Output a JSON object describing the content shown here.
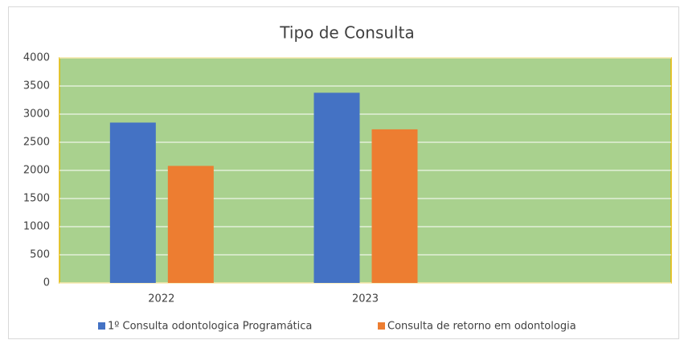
{
  "chart_data": {
    "type": "bar",
    "title": "Tipo de Consulta",
    "categories": [
      "2022",
      "2023",
      null
    ],
    "series": [
      {
        "name": "1º Consulta odontologica Programática",
        "color": "#4472c4",
        "values": [
          2850,
          3380,
          null
        ]
      },
      {
        "name": "Consulta de retorno em odontologia",
        "color": "#ed7d31",
        "values": [
          2080,
          2730,
          null
        ]
      }
    ],
    "ylim": [
      0,
      4000
    ],
    "yticks": [
      0,
      500,
      1000,
      1500,
      2000,
      2500,
      3000,
      3500,
      4000
    ],
    "grid": true,
    "legend": "bottom"
  }
}
